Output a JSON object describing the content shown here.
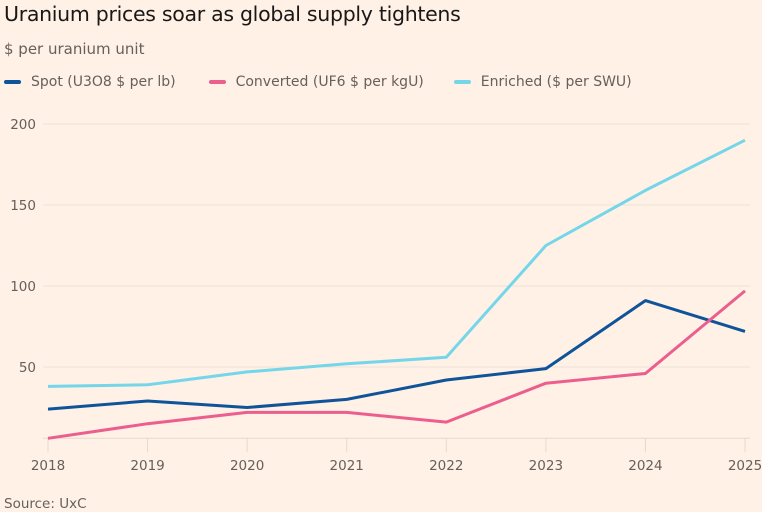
{
  "chart_data": {
    "type": "line",
    "title": "Uranium prices soar as global supply tightens",
    "subtitle": "$ per uranium unit",
    "xlabel": "",
    "ylabel": "",
    "x": [
      "2018",
      "2019",
      "2020",
      "2021",
      "2022",
      "2023",
      "2024",
      "2025"
    ],
    "yticks": [
      50,
      100,
      150,
      200
    ],
    "ylim": [
      6,
      200
    ],
    "grid": true,
    "legend_position": "top-left",
    "series": [
      {
        "name": "Spot (U3O8 $ per lb)",
        "color": "#0f5499",
        "values": [
          24,
          29,
          25,
          30,
          42,
          49,
          91,
          72
        ]
      },
      {
        "name": "Converted (UF6 $ per kgU)",
        "color": "#eb5e8d",
        "values": [
          6,
          15,
          22,
          22,
          16,
          40,
          46,
          97
        ]
      },
      {
        "name": "Enriched ($ per SWU)",
        "color": "#75d6ea",
        "values": [
          38,
          39,
          47,
          52,
          56,
          125,
          159,
          190
        ]
      }
    ],
    "source": "Source: UxC"
  }
}
